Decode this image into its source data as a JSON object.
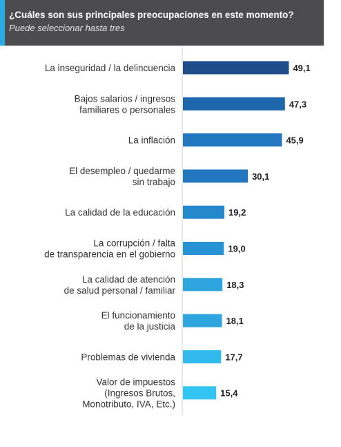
{
  "header": {
    "title": "¿Cuáles son sus principales preocupaciones en este momento?",
    "subtitle": "Puede seleccionar hasta tres"
  },
  "colors": {
    "header_bg": "#4c4c4e",
    "accent": "#29abe2",
    "axis": "#cccccc",
    "label_text": "#333333",
    "value_text": "#222222",
    "bar_gradient": [
      "#1e4b8a",
      "#1f67ad",
      "#2277c0",
      "#2489cc",
      "#2694d4",
      "#2ea5df",
      "#31b8ec",
      "#32c4f2"
    ]
  },
  "chart_data": {
    "type": "bar",
    "orientation": "horizontal",
    "title": "¿Cuáles son sus principales preocupaciones en este momento?",
    "subtitle": "Puede seleccionar hasta tres",
    "categories": [
      [
        "La inseguridad / la delincuencia"
      ],
      [
        "Bajos salarios / ingresos",
        "familiares o personales"
      ],
      [
        "La inflación"
      ],
      [
        "El desempleo / quedarme",
        "sin trabajo"
      ],
      [
        "La calidad de la educación"
      ],
      [
        "La corrupción / falta",
        "de transparencia en el gobierno"
      ],
      [
        "La calidad de atención",
        "de salud personal / familiar"
      ],
      [
        "El funcionamiento",
        "de la justicia"
      ],
      [
        "Problemas de vivienda"
      ],
      [
        "Valor de impuestos",
        "(Ingresos Brutos,",
        "Monotributo, IVA, Etc.)"
      ]
    ],
    "values": [
      49.1,
      47.3,
      45.9,
      30.1,
      19.2,
      19.0,
      18.3,
      18.1,
      17.7,
      15.4
    ],
    "value_labels": [
      "49,1",
      "47,3",
      "45,9",
      "30,1",
      "19,2",
      "19,0",
      "18,3",
      "18,1",
      "17,7",
      "15,4"
    ],
    "xlim": [
      0,
      50
    ],
    "grid": false,
    "legend": "none"
  }
}
